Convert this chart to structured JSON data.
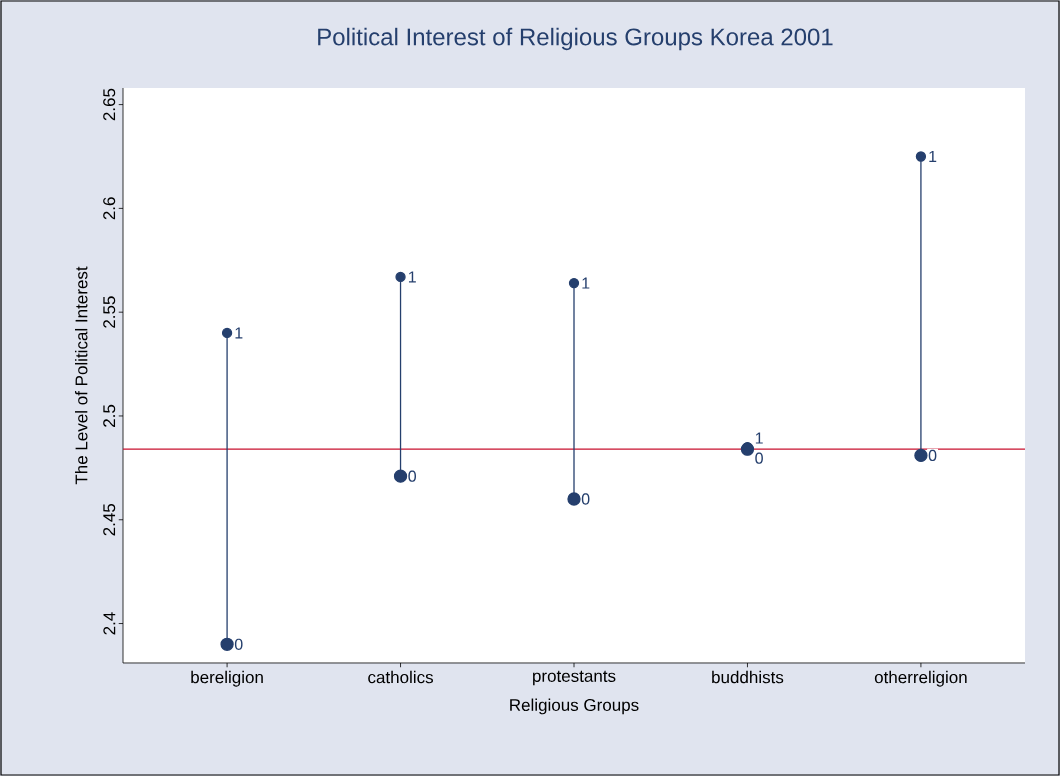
{
  "chart_data": {
    "type": "scatter",
    "title": "Political Interest of Religious Groups Korea 2001",
    "xlabel": "Religious Groups",
    "ylabel": "The Level of Political Interest",
    "categories": [
      "bereligion",
      "catholics",
      "protestants",
      "buddhists",
      "otherreligion"
    ],
    "series": [
      {
        "name": "0",
        "color": "#253f6d",
        "values": [
          2.39,
          2.471,
          2.46,
          2.484,
          2.481
        ]
      },
      {
        "name": "1",
        "color": "#253f6d",
        "values": [
          2.54,
          2.567,
          2.564,
          2.485,
          2.625
        ]
      }
    ],
    "ylim": [
      2.381,
      2.658
    ],
    "yticks": [
      2.4,
      2.45,
      2.5,
      2.55,
      2.6,
      2.65
    ],
    "ref_lines": [
      {
        "axis": "y",
        "value": 2.484,
        "color": "#c8102e"
      }
    ],
    "marker": "circle",
    "grid": false,
    "legend": false
  }
}
